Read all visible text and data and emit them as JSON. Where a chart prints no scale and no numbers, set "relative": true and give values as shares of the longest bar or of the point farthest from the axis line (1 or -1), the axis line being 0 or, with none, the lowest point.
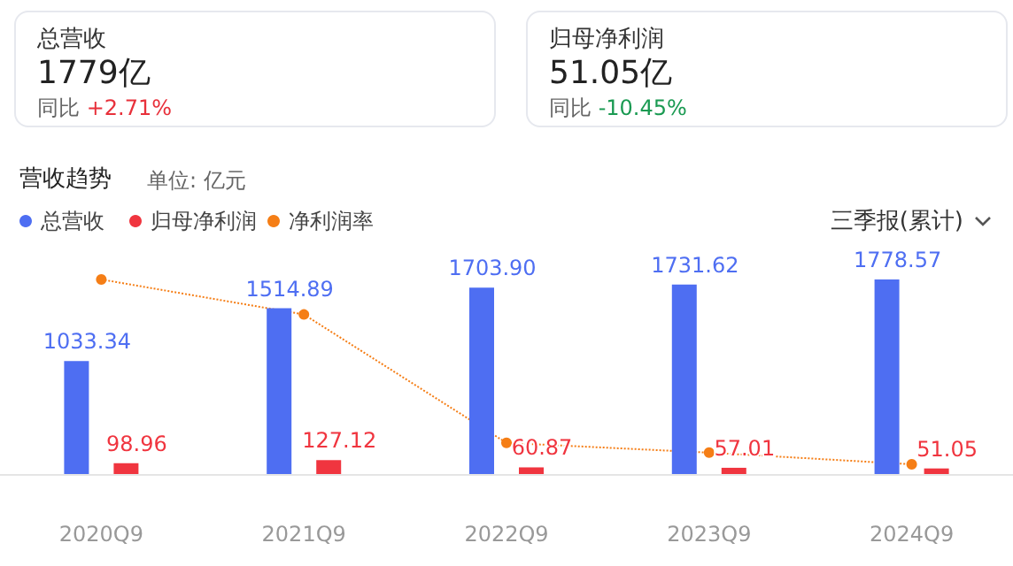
{
  "chart_data": [
    {
      "type": "other",
      "title": "总营收",
      "annotations": [
        "1779亿",
        "同比",
        "+2.71%"
      ]
    },
    {
      "type": "other",
      "title": "归母净利润",
      "annotations": [
        "51.05亿",
        "同比",
        "-10.45%"
      ]
    },
    {
      "type": "bar",
      "title": "营收趋势",
      "subtitle": "单位: 亿元",
      "categories": [
        "2020Q9",
        "2021Q9",
        "2022Q9",
        "2023Q9",
        "2024Q9"
      ],
      "series": [
        {
          "name": "总营收",
          "color": "#4e6ef2",
          "values": [
            1033.34,
            1514.89,
            1703.9,
            1731.62,
            1778.57
          ],
          "value_labels": [
            "1033.34",
            "1514.89",
            "1703.90",
            "1731.62",
            "1778.57"
          ]
        },
        {
          "name": "归母净利润",
          "color": "#f0353f",
          "values": [
            98.96,
            127.12,
            60.87,
            57.01,
            51.05
          ],
          "value_labels": [
            "98.96",
            "127.12",
            "60.87",
            "57.01",
            "51.05"
          ]
        }
      ],
      "grid": false,
      "legend": "top left",
      "annotations": [
        "三季报(累计)"
      ]
    },
    {
      "type": "line",
      "categories": [
        null,
        null,
        null,
        null,
        null
      ],
      "relative": true,
      "series": [
        {
          "name": "净利润率",
          "color": "#f57e16",
          "values": [
            1,
            0.82,
            0.16,
            0.11,
            0.05
          ]
        }
      ],
      "marker": "circle",
      "line_style": "dotted",
      "grid": false,
      "legend": "top left"
    }
  ]
}
